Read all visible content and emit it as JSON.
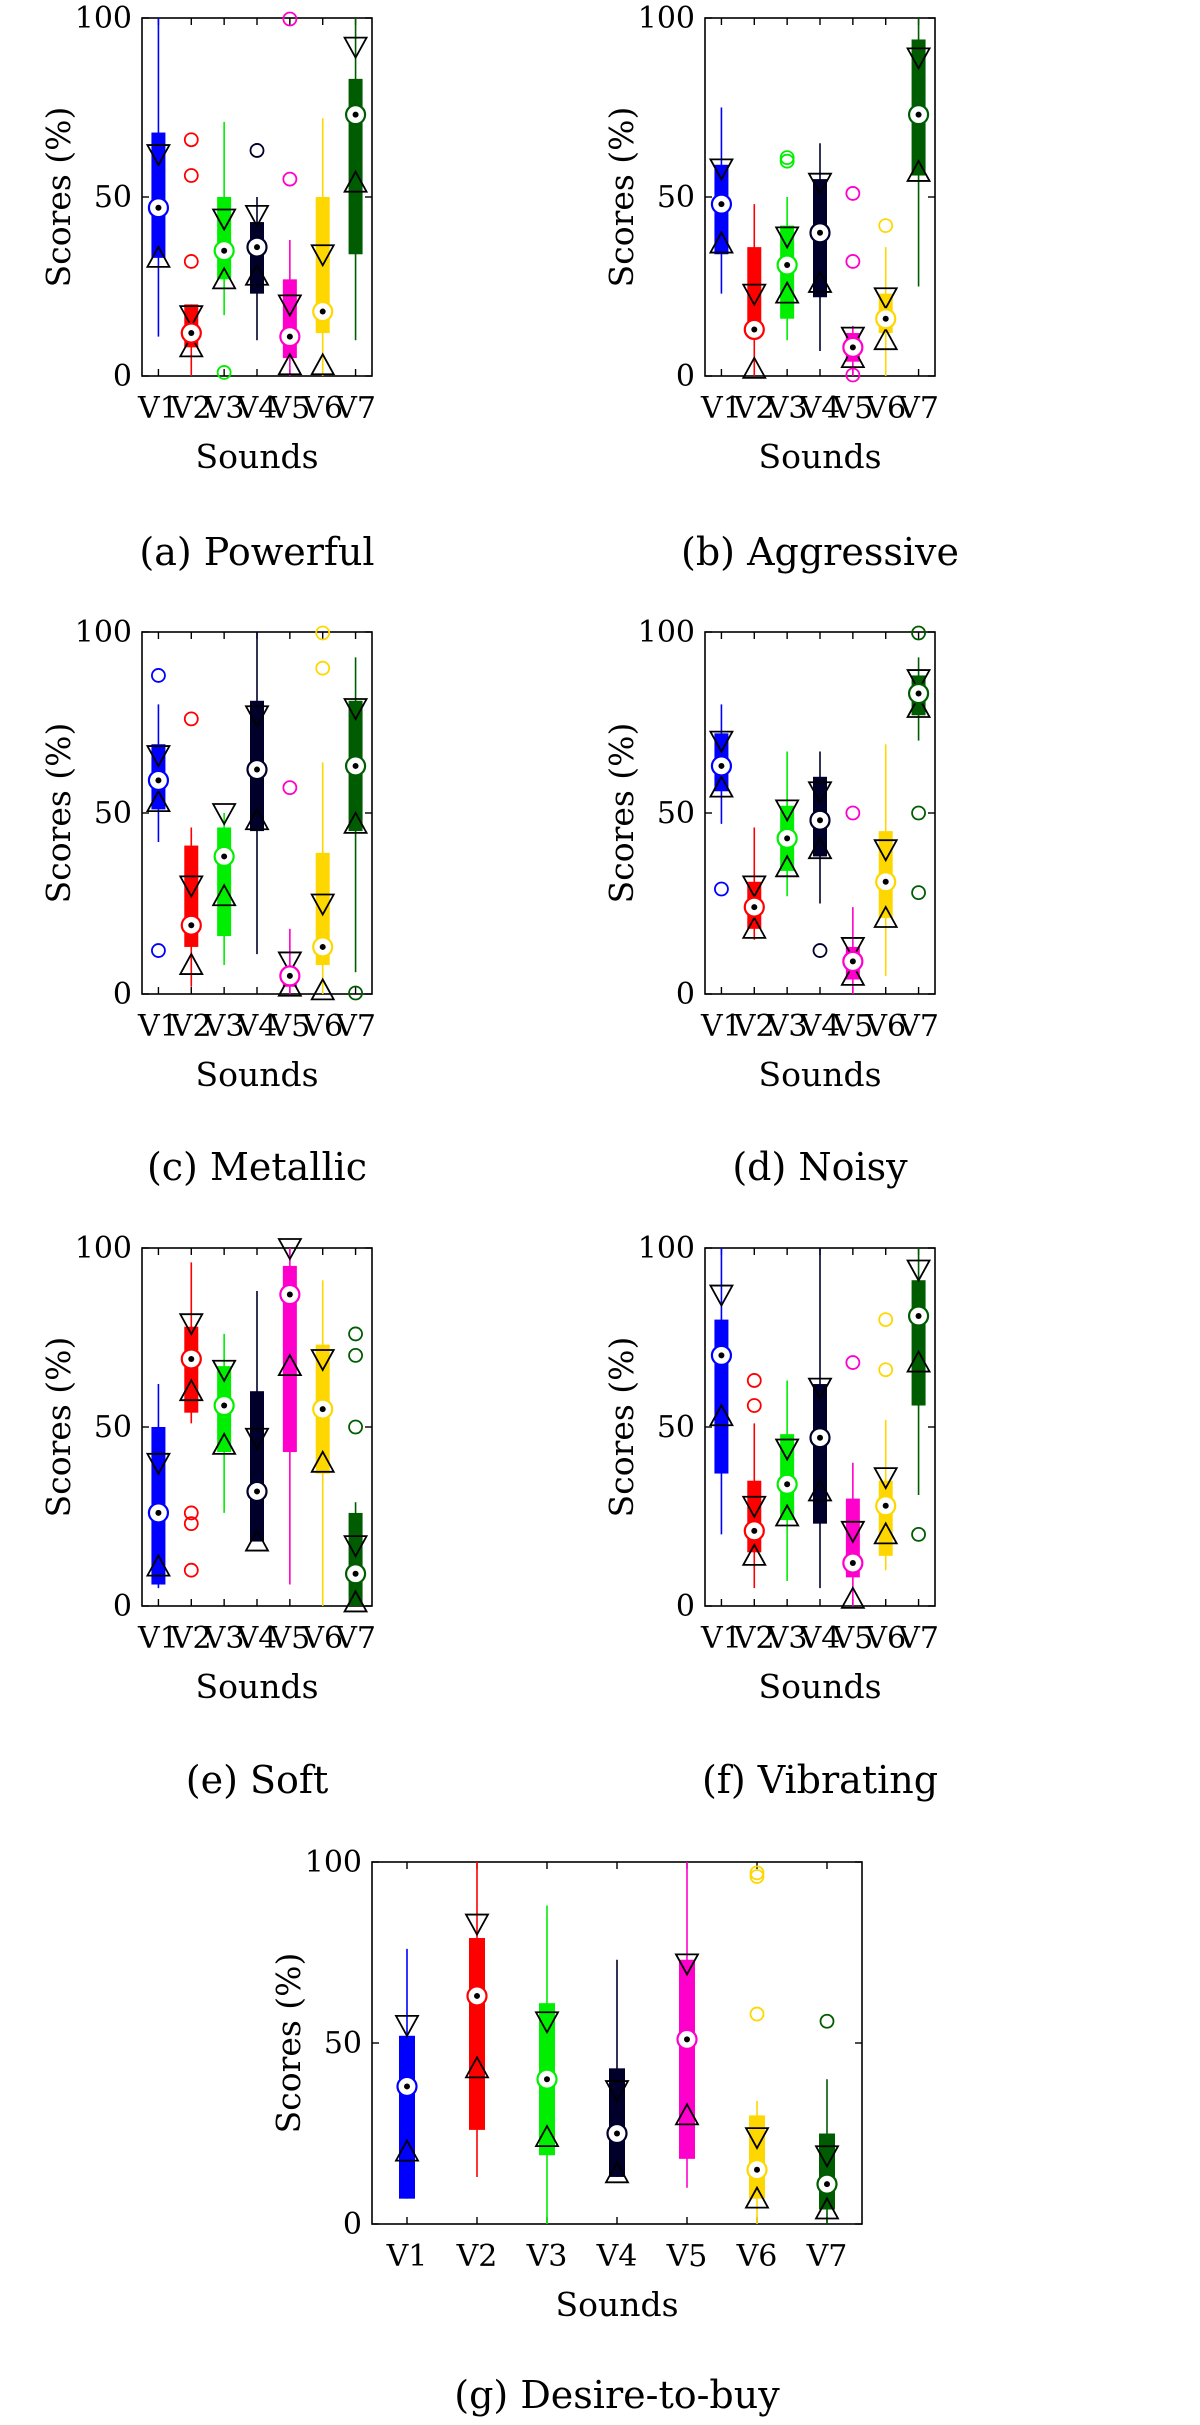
{
  "figure": {
    "categories": [
      "V1",
      "V2",
      "V3",
      "V4",
      "V5",
      "V6",
      "V7"
    ],
    "ylim": [
      0,
      100
    ],
    "yticks": [
      0,
      50,
      100
    ],
    "xlabel": "Sounds",
    "ylabel": "Scores (%)",
    "series_colors": [
      "#0000ff",
      "#ff0000",
      "#00ee00",
      "#00002a",
      "#ff00cc",
      "#ffd700",
      "#005c00"
    ]
  },
  "chart_data": [
    {
      "type": "box",
      "title": "(a) Powerful",
      "xlabel": "Sounds",
      "ylabel": "Scores (%)",
      "ylim": [
        0,
        100
      ],
      "categories": [
        "V1",
        "V2",
        "V3",
        "V4",
        "V5",
        "V6",
        "V7"
      ],
      "boxes": [
        {
          "q1": 33,
          "q3": 68,
          "median": 47,
          "whisker_low": 11,
          "whisker_high": 100,
          "notch_low": 33,
          "notch_high": 62,
          "outliers": []
        },
        {
          "q1": 8,
          "q3": 20,
          "median": 12,
          "whisker_low": 0,
          "whisker_high": 20,
          "notch_low": 8,
          "notch_high": 17,
          "outliers": [
            32,
            56,
            66
          ]
        },
        {
          "q1": 27,
          "q3": 50,
          "median": 35,
          "whisker_low": 17,
          "whisker_high": 71,
          "notch_low": 27,
          "notch_high": 44,
          "outliers": [
            1
          ]
        },
        {
          "q1": 23,
          "q3": 43,
          "median": 36,
          "whisker_low": 10,
          "whisker_high": 50,
          "notch_low": 28,
          "notch_high": 45,
          "outliers": [
            63
          ]
        },
        {
          "q1": 5,
          "q3": 27,
          "median": 11,
          "whisker_low": 0,
          "whisker_high": 38,
          "notch_low": 3,
          "notch_high": 20,
          "outliers": [
            55,
            100
          ]
        },
        {
          "q1": 12,
          "q3": 50,
          "median": 18,
          "whisker_low": 0,
          "whisker_high": 72,
          "notch_low": 3,
          "notch_high": 34,
          "outliers": []
        },
        {
          "q1": 34,
          "q3": 83,
          "median": 73,
          "whisker_low": 10,
          "whisker_high": 100,
          "notch_low": 54,
          "notch_high": 92,
          "outliers": []
        }
      ]
    },
    {
      "type": "box",
      "title": "(b) Aggressive",
      "xlabel": "Sounds",
      "ylabel": "Scores (%)",
      "ylim": [
        0,
        100
      ],
      "categories": [
        "V1",
        "V2",
        "V3",
        "V4",
        "V5",
        "V6",
        "V7"
      ],
      "boxes": [
        {
          "q1": 34,
          "q3": 59,
          "median": 48,
          "whisker_low": 23,
          "whisker_high": 75,
          "notch_low": 37,
          "notch_high": 58,
          "outliers": []
        },
        {
          "q1": 11,
          "q3": 36,
          "median": 13,
          "whisker_low": 0,
          "whisker_high": 48,
          "notch_low": 2,
          "notch_high": 23,
          "outliers": []
        },
        {
          "q1": 16,
          "q3": 42,
          "median": 31,
          "whisker_low": 10,
          "whisker_high": 50,
          "notch_low": 23,
          "notch_high": 39,
          "outliers": [
            60,
            61
          ]
        },
        {
          "q1": 22,
          "q3": 55,
          "median": 40,
          "whisker_low": 7,
          "whisker_high": 65,
          "notch_low": 26,
          "notch_high": 54,
          "outliers": []
        },
        {
          "q1": 4,
          "q3": 12,
          "median": 8,
          "whisker_low": 0,
          "whisker_high": 14,
          "notch_low": 5,
          "notch_high": 11,
          "outliers": [
            0,
            32,
            51
          ]
        },
        {
          "q1": 12,
          "q3": 23,
          "median": 16,
          "whisker_low": 0,
          "whisker_high": 36,
          "notch_low": 10,
          "notch_high": 22,
          "outliers": [
            42
          ]
        },
        {
          "q1": 56,
          "q3": 94,
          "median": 73,
          "whisker_low": 25,
          "whisker_high": 100,
          "notch_low": 57,
          "notch_high": 89,
          "outliers": []
        }
      ]
    },
    {
      "type": "box",
      "title": "(c) Metallic",
      "xlabel": "Sounds",
      "ylabel": "Scores (%)",
      "ylim": [
        0,
        100
      ],
      "categories": [
        "V1",
        "V2",
        "V3",
        "V4",
        "V5",
        "V6",
        "V7"
      ],
      "boxes": [
        {
          "q1": 51,
          "q3": 69,
          "median": 59,
          "whisker_low": 42,
          "whisker_high": 80,
          "notch_low": 53,
          "notch_high": 66,
          "outliers": [
            12,
            88
          ]
        },
        {
          "q1": 13,
          "q3": 41,
          "median": 19,
          "whisker_low": 2,
          "whisker_high": 46,
          "notch_low": 8,
          "notch_high": 30,
          "outliers": [
            76
          ]
        },
        {
          "q1": 16,
          "q3": 46,
          "median": 38,
          "whisker_low": 8,
          "whisker_high": 50,
          "notch_low": 27,
          "notch_high": 50,
          "outliers": []
        },
        {
          "q1": 45,
          "q3": 81,
          "median": 62,
          "whisker_low": 11,
          "whisker_high": 100,
          "notch_low": 48,
          "notch_high": 77,
          "outliers": []
        },
        {
          "q1": 2,
          "q3": 7,
          "median": 5,
          "whisker_low": 0,
          "whisker_high": 18,
          "notch_low": 2,
          "notch_high": 9,
          "outliers": [
            57
          ]
        },
        {
          "q1": 8,
          "q3": 39,
          "median": 13,
          "whisker_low": 0,
          "whisker_high": 64,
          "notch_low": 1,
          "notch_high": 25,
          "outliers": [
            90,
            100
          ]
        },
        {
          "q1": 45,
          "q3": 81,
          "median": 63,
          "whisker_low": 6,
          "whisker_high": 93,
          "notch_low": 47,
          "notch_high": 79,
          "outliers": [
            0
          ]
        }
      ]
    },
    {
      "type": "box",
      "title": "(d) Noisy",
      "xlabel": "Sounds",
      "ylabel": "Scores (%)",
      "ylim": [
        0,
        100
      ],
      "categories": [
        "V1",
        "V2",
        "V3",
        "V4",
        "V5",
        "V6",
        "V7"
      ],
      "boxes": [
        {
          "q1": 56,
          "q3": 72,
          "median": 63,
          "whisker_low": 47,
          "whisker_high": 80,
          "notch_low": 57,
          "notch_high": 70,
          "outliers": [
            29
          ]
        },
        {
          "q1": 18,
          "q3": 31,
          "median": 24,
          "whisker_low": 15,
          "whisker_high": 46,
          "notch_low": 18,
          "notch_high": 30,
          "outliers": []
        },
        {
          "q1": 34,
          "q3": 52,
          "median": 43,
          "whisker_low": 27,
          "whisker_high": 67,
          "notch_low": 35,
          "notch_high": 51,
          "outliers": []
        },
        {
          "q1": 38,
          "q3": 60,
          "median": 48,
          "whisker_low": 25,
          "whisker_high": 67,
          "notch_low": 40,
          "notch_high": 56,
          "outliers": [
            12
          ]
        },
        {
          "q1": 4,
          "q3": 13,
          "median": 9,
          "whisker_low": 0,
          "whisker_high": 24,
          "notch_low": 5,
          "notch_high": 13,
          "outliers": [
            50
          ]
        },
        {
          "q1": 21,
          "q3": 45,
          "median": 31,
          "whisker_low": 5,
          "whisker_high": 69,
          "notch_low": 21,
          "notch_high": 40,
          "outliers": []
        },
        {
          "q1": 77,
          "q3": 88,
          "median": 83,
          "whisker_low": 70,
          "whisker_high": 93,
          "notch_low": 79,
          "notch_high": 87,
          "outliers": [
            28,
            50,
            100
          ]
        }
      ]
    },
    {
      "type": "box",
      "title": "(e) Soft",
      "xlabel": "Sounds",
      "ylabel": "Scores (%)",
      "ylim": [
        0,
        100
      ],
      "categories": [
        "V1",
        "V2",
        "V3",
        "V4",
        "V5",
        "V6",
        "V7"
      ],
      "boxes": [
        {
          "q1": 6,
          "q3": 50,
          "median": 26,
          "whisker_low": 5,
          "whisker_high": 62,
          "notch_low": 11,
          "notch_high": 40,
          "outliers": []
        },
        {
          "q1": 54,
          "q3": 78,
          "median": 69,
          "whisker_low": 51,
          "whisker_high": 96,
          "notch_low": 60,
          "notch_high": 79,
          "outliers": [
            10,
            23,
            26
          ]
        },
        {
          "q1": 43,
          "q3": 67,
          "median": 56,
          "whisker_low": 26,
          "whisker_high": 76,
          "notch_low": 45,
          "notch_high": 66,
          "outliers": []
        },
        {
          "q1": 18,
          "q3": 60,
          "median": 32,
          "whisker_low": 18,
          "whisker_high": 88,
          "notch_low": 18,
          "notch_high": 47,
          "outliers": []
        },
        {
          "q1": 43,
          "q3": 95,
          "median": 87,
          "whisker_low": 6,
          "whisker_high": 100,
          "notch_low": 67,
          "notch_high": 100,
          "outliers": []
        },
        {
          "q1": 37,
          "q3": 73,
          "median": 55,
          "whisker_low": 0,
          "whisker_high": 91,
          "notch_low": 40,
          "notch_high": 69,
          "outliers": []
        },
        {
          "q1": 0,
          "q3": 26,
          "median": 9,
          "whisker_low": 0,
          "whisker_high": 29,
          "notch_low": 1,
          "notch_high": 17,
          "outliers": [
            50,
            70,
            76
          ]
        }
      ]
    },
    {
      "type": "box",
      "title": "(f) Vibrating",
      "xlabel": "Sounds",
      "ylabel": "Scores (%)",
      "ylim": [
        0,
        100
      ],
      "categories": [
        "V1",
        "V2",
        "V3",
        "V4",
        "V5",
        "V6",
        "V7"
      ],
      "boxes": [
        {
          "q1": 37,
          "q3": 80,
          "median": 70,
          "whisker_low": 20,
          "whisker_high": 100,
          "notch_low": 53,
          "notch_high": 87,
          "outliers": []
        },
        {
          "q1": 15,
          "q3": 35,
          "median": 21,
          "whisker_low": 5,
          "whisker_high": 51,
          "notch_low": 14,
          "notch_high": 28,
          "outliers": [
            56,
            63
          ]
        },
        {
          "q1": 24,
          "q3": 48,
          "median": 34,
          "whisker_low": 7,
          "whisker_high": 63,
          "notch_low": 25,
          "notch_high": 44,
          "outliers": []
        },
        {
          "q1": 23,
          "q3": 62,
          "median": 47,
          "whisker_low": 5,
          "whisker_high": 100,
          "notch_low": 32,
          "notch_high": 61,
          "outliers": []
        },
        {
          "q1": 8,
          "q3": 30,
          "median": 12,
          "whisker_low": 0,
          "whisker_high": 40,
          "notch_low": 2,
          "notch_high": 21,
          "outliers": [
            68
          ]
        },
        {
          "q1": 14,
          "q3": 35,
          "median": 28,
          "whisker_low": 10,
          "whisker_high": 52,
          "notch_low": 20,
          "notch_high": 36,
          "outliers": [
            66,
            80
          ]
        },
        {
          "q1": 56,
          "q3": 91,
          "median": 81,
          "whisker_low": 31,
          "whisker_high": 100,
          "notch_low": 68,
          "notch_high": 94,
          "outliers": [
            20
          ]
        }
      ]
    },
    {
      "type": "box",
      "title": "(g) Desire-to-buy",
      "xlabel": "Sounds",
      "ylabel": "Scores (%)",
      "ylim": [
        0,
        100
      ],
      "categories": [
        "V1",
        "V2",
        "V3",
        "V4",
        "V5",
        "V6",
        "V7"
      ],
      "boxes": [
        {
          "q1": 7,
          "q3": 52,
          "median": 38,
          "whisker_low": 7,
          "whisker_high": 76,
          "notch_low": 20,
          "notch_high": 55,
          "outliers": []
        },
        {
          "q1": 26,
          "q3": 79,
          "median": 63,
          "whisker_low": 13,
          "whisker_high": 100,
          "notch_low": 43,
          "notch_high": 83,
          "outliers": []
        },
        {
          "q1": 19,
          "q3": 61,
          "median": 40,
          "whisker_low": 0,
          "whisker_high": 88,
          "notch_low": 24,
          "notch_high": 56,
          "outliers": []
        },
        {
          "q1": 13,
          "q3": 43,
          "median": 25,
          "whisker_low": 13,
          "whisker_high": 73,
          "notch_low": 14,
          "notch_high": 37,
          "outliers": []
        },
        {
          "q1": 18,
          "q3": 73,
          "median": 51,
          "whisker_low": 10,
          "whisker_high": 100,
          "notch_low": 30,
          "notch_high": 72,
          "outliers": []
        },
        {
          "q1": 7,
          "q3": 30,
          "median": 15,
          "whisker_low": 0,
          "whisker_high": 34,
          "notch_low": 7,
          "notch_high": 24,
          "outliers": [
            58,
            96,
            97
          ]
        },
        {
          "q1": 4,
          "q3": 25,
          "median": 11,
          "whisker_low": 0,
          "whisker_high": 40,
          "notch_low": 4,
          "notch_high": 19,
          "outliers": [
            56
          ]
        }
      ]
    }
  ]
}
